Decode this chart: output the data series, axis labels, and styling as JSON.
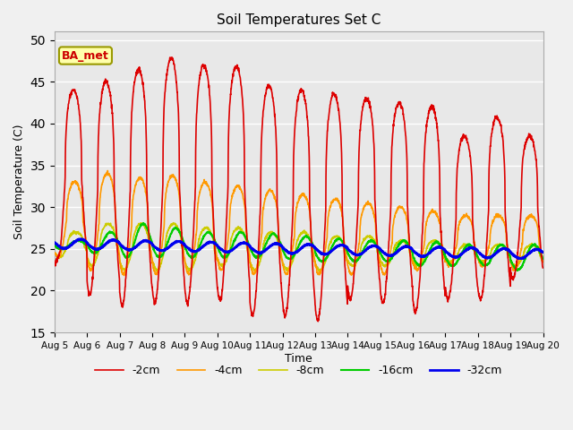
{
  "title": "Soil Temperatures Set C",
  "xlabel": "Time",
  "ylabel": "Soil Temperature (C)",
  "ylim": [
    15,
    51
  ],
  "yticks": [
    15,
    20,
    25,
    30,
    35,
    40,
    45,
    50
  ],
  "annotation": "BA_met",
  "legend_labels": [
    "-2cm",
    "-4cm",
    "-8cm",
    "-16cm",
    "-32cm"
  ],
  "legend_colors": [
    "#dd0000",
    "#ff9900",
    "#cccc00",
    "#00cc00",
    "#0000ee"
  ],
  "line_widths": [
    1.2,
    1.2,
    1.2,
    1.5,
    2.0
  ],
  "background_color": "#f0f0f0",
  "plot_bg_color": "#e8e8e8",
  "n_days": 15,
  "points_per_day": 144,
  "start_day": 5,
  "figsize": [
    6.4,
    4.8
  ],
  "dpi": 100
}
